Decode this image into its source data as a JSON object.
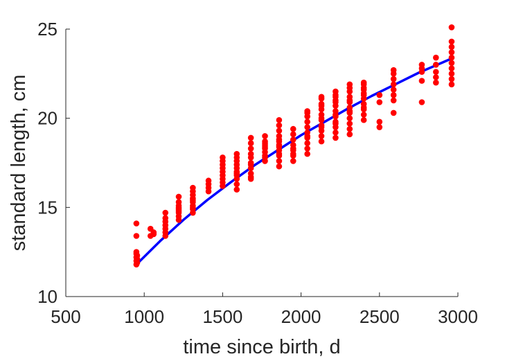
{
  "chart_data": {
    "type": "scatter",
    "xlabel": "time since birth, d",
    "ylabel": "standard length, cm",
    "xlim": [
      500,
      3000
    ],
    "ylim": [
      10,
      25
    ],
    "xticks": [
      "500",
      "1000",
      "1500",
      "2000",
      "2500",
      "3000"
    ],
    "yticks": [
      "10",
      "15",
      "20",
      "25"
    ],
    "grid": false,
    "colors": {
      "points": "#ff0000",
      "fit": "#0000ff"
    },
    "series": [
      {
        "kind": "scatter",
        "x": [
          950,
          950,
          950,
          950,
          950,
          950,
          950,
          955,
          955,
          955,
          1040,
          1040,
          1060,
          1060,
          1135,
          1135,
          1135,
          1135,
          1135,
          1135,
          1135,
          1220,
          1220,
          1220,
          1220,
          1220,
          1220,
          1220,
          1220,
          1220,
          1310,
          1310,
          1310,
          1310,
          1310,
          1310,
          1310,
          1310,
          1310,
          1310,
          1410,
          1410,
          1410,
          1410,
          1500,
          1500,
          1500,
          1500,
          1500,
          1500,
          1500,
          1500,
          1500,
          1590,
          1590,
          1590,
          1590,
          1590,
          1590,
          1590,
          1590,
          1590,
          1590,
          1590,
          1680,
          1680,
          1680,
          1680,
          1680,
          1680,
          1680,
          1680,
          1680,
          1680,
          1680,
          1770,
          1770,
          1770,
          1770,
          1770,
          1770,
          1770,
          1770,
          1770,
          1770,
          1860,
          1860,
          1860,
          1860,
          1860,
          1860,
          1860,
          1860,
          1860,
          1860,
          1860,
          1860,
          1860,
          1950,
          1950,
          1950,
          1950,
          1950,
          1950,
          1950,
          1950,
          1950,
          2040,
          2040,
          2040,
          2040,
          2040,
          2040,
          2040,
          2040,
          2040,
          2040,
          2040,
          2130,
          2130,
          2130,
          2130,
          2130,
          2130,
          2130,
          2130,
          2130,
          2130,
          2130,
          2130,
          2130,
          2220,
          2220,
          2220,
          2220,
          2220,
          2220,
          2220,
          2220,
          2220,
          2220,
          2220,
          2220,
          2220,
          2220,
          2310,
          2310,
          2310,
          2310,
          2310,
          2310,
          2310,
          2310,
          2310,
          2310,
          2310,
          2310,
          2310,
          2400,
          2400,
          2400,
          2400,
          2400,
          2400,
          2400,
          2400,
          2400,
          2400,
          2400,
          2400,
          2500,
          2500,
          2500,
          2500,
          2590,
          2590,
          2590,
          2590,
          2590,
          2590,
          2590,
          2590,
          2770,
          2770,
          2770,
          2770,
          2770,
          2860,
          2860,
          2860,
          2860,
          2860,
          2960,
          2960,
          2960,
          2960,
          2960,
          2960,
          2960,
          2960,
          2960,
          2960
        ],
        "y": [
          11.8,
          12.0,
          12.2,
          12.4,
          12.5,
          13.4,
          14.1,
          12.1,
          11.9,
          12.3,
          13.8,
          13.4,
          13.5,
          13.6,
          13.6,
          13.8,
          14.0,
          14.2,
          14.4,
          14.7,
          13.4,
          14.3,
          14.5,
          14.7,
          14.9,
          15.1,
          15.3,
          15.6,
          14.8,
          15.0,
          14.7,
          14.9,
          15.1,
          15.3,
          15.5,
          15.7,
          15.9,
          16.1,
          15.0,
          15.4,
          15.9,
          16.1,
          16.3,
          16.5,
          16.2,
          16.4,
          16.6,
          16.8,
          17.0,
          17.2,
          17.4,
          17.6,
          17.8,
          16.0,
          16.3,
          16.6,
          16.8,
          17.0,
          17.2,
          17.4,
          17.6,
          17.8,
          18.0,
          16.9,
          16.6,
          16.9,
          17.2,
          17.5,
          17.8,
          18.0,
          18.3,
          18.6,
          18.9,
          16.7,
          17.4,
          17.6,
          17.9,
          18.1,
          18.3,
          18.5,
          18.7,
          19.0,
          17.8,
          18.6,
          18.4,
          17.3,
          17.6,
          17.9,
          18.2,
          18.5,
          18.8,
          19.0,
          19.3,
          19.6,
          19.9,
          18.0,
          18.4,
          18.7,
          17.6,
          17.9,
          18.2,
          18.5,
          18.8,
          19.1,
          19.4,
          18.3,
          18.0,
          18.0,
          18.3,
          18.6,
          18.9,
          19.2,
          19.5,
          19.8,
          20.1,
          20.4,
          19.0,
          20.3,
          18.7,
          19.0,
          19.3,
          19.6,
          19.9,
          20.2,
          20.5,
          20.8,
          21.1,
          19.5,
          20.0,
          20.7,
          21.2,
          18.9,
          19.2,
          19.5,
          19.8,
          20.1,
          20.4,
          20.7,
          21.0,
          21.3,
          21.5,
          19.7,
          20.2,
          20.9,
          21.2,
          19.1,
          19.4,
          19.7,
          20.0,
          20.3,
          20.6,
          20.9,
          21.2,
          21.5,
          21.9,
          20.4,
          21.0,
          21.7,
          19.9,
          20.2,
          20.5,
          20.8,
          21.1,
          21.4,
          21.7,
          22.0,
          21.3,
          20.6,
          21.6,
          21.9,
          19.5,
          19.8,
          20.9,
          21.3,
          20.3,
          21.0,
          21.3,
          21.6,
          21.9,
          22.2,
          22.5,
          22.7,
          20.9,
          22.1,
          22.6,
          22.8,
          23.0,
          22.0,
          22.3,
          22.6,
          23.0,
          23.4,
          21.9,
          22.2,
          22.5,
          22.8,
          23.1,
          23.4,
          23.7,
          24.0,
          24.3,
          25.1
        ]
      },
      {
        "kind": "line",
        "x": [
          950,
          1100,
          1250,
          1400,
          1550,
          1700,
          1850,
          2000,
          2150,
          2300,
          2450,
          2600,
          2750,
          2960
        ],
        "y": [
          11.8,
          13.1,
          14.3,
          15.4,
          16.4,
          17.35,
          18.2,
          19.05,
          19.8,
          20.55,
          21.25,
          21.9,
          22.55,
          23.35
        ]
      }
    ]
  }
}
